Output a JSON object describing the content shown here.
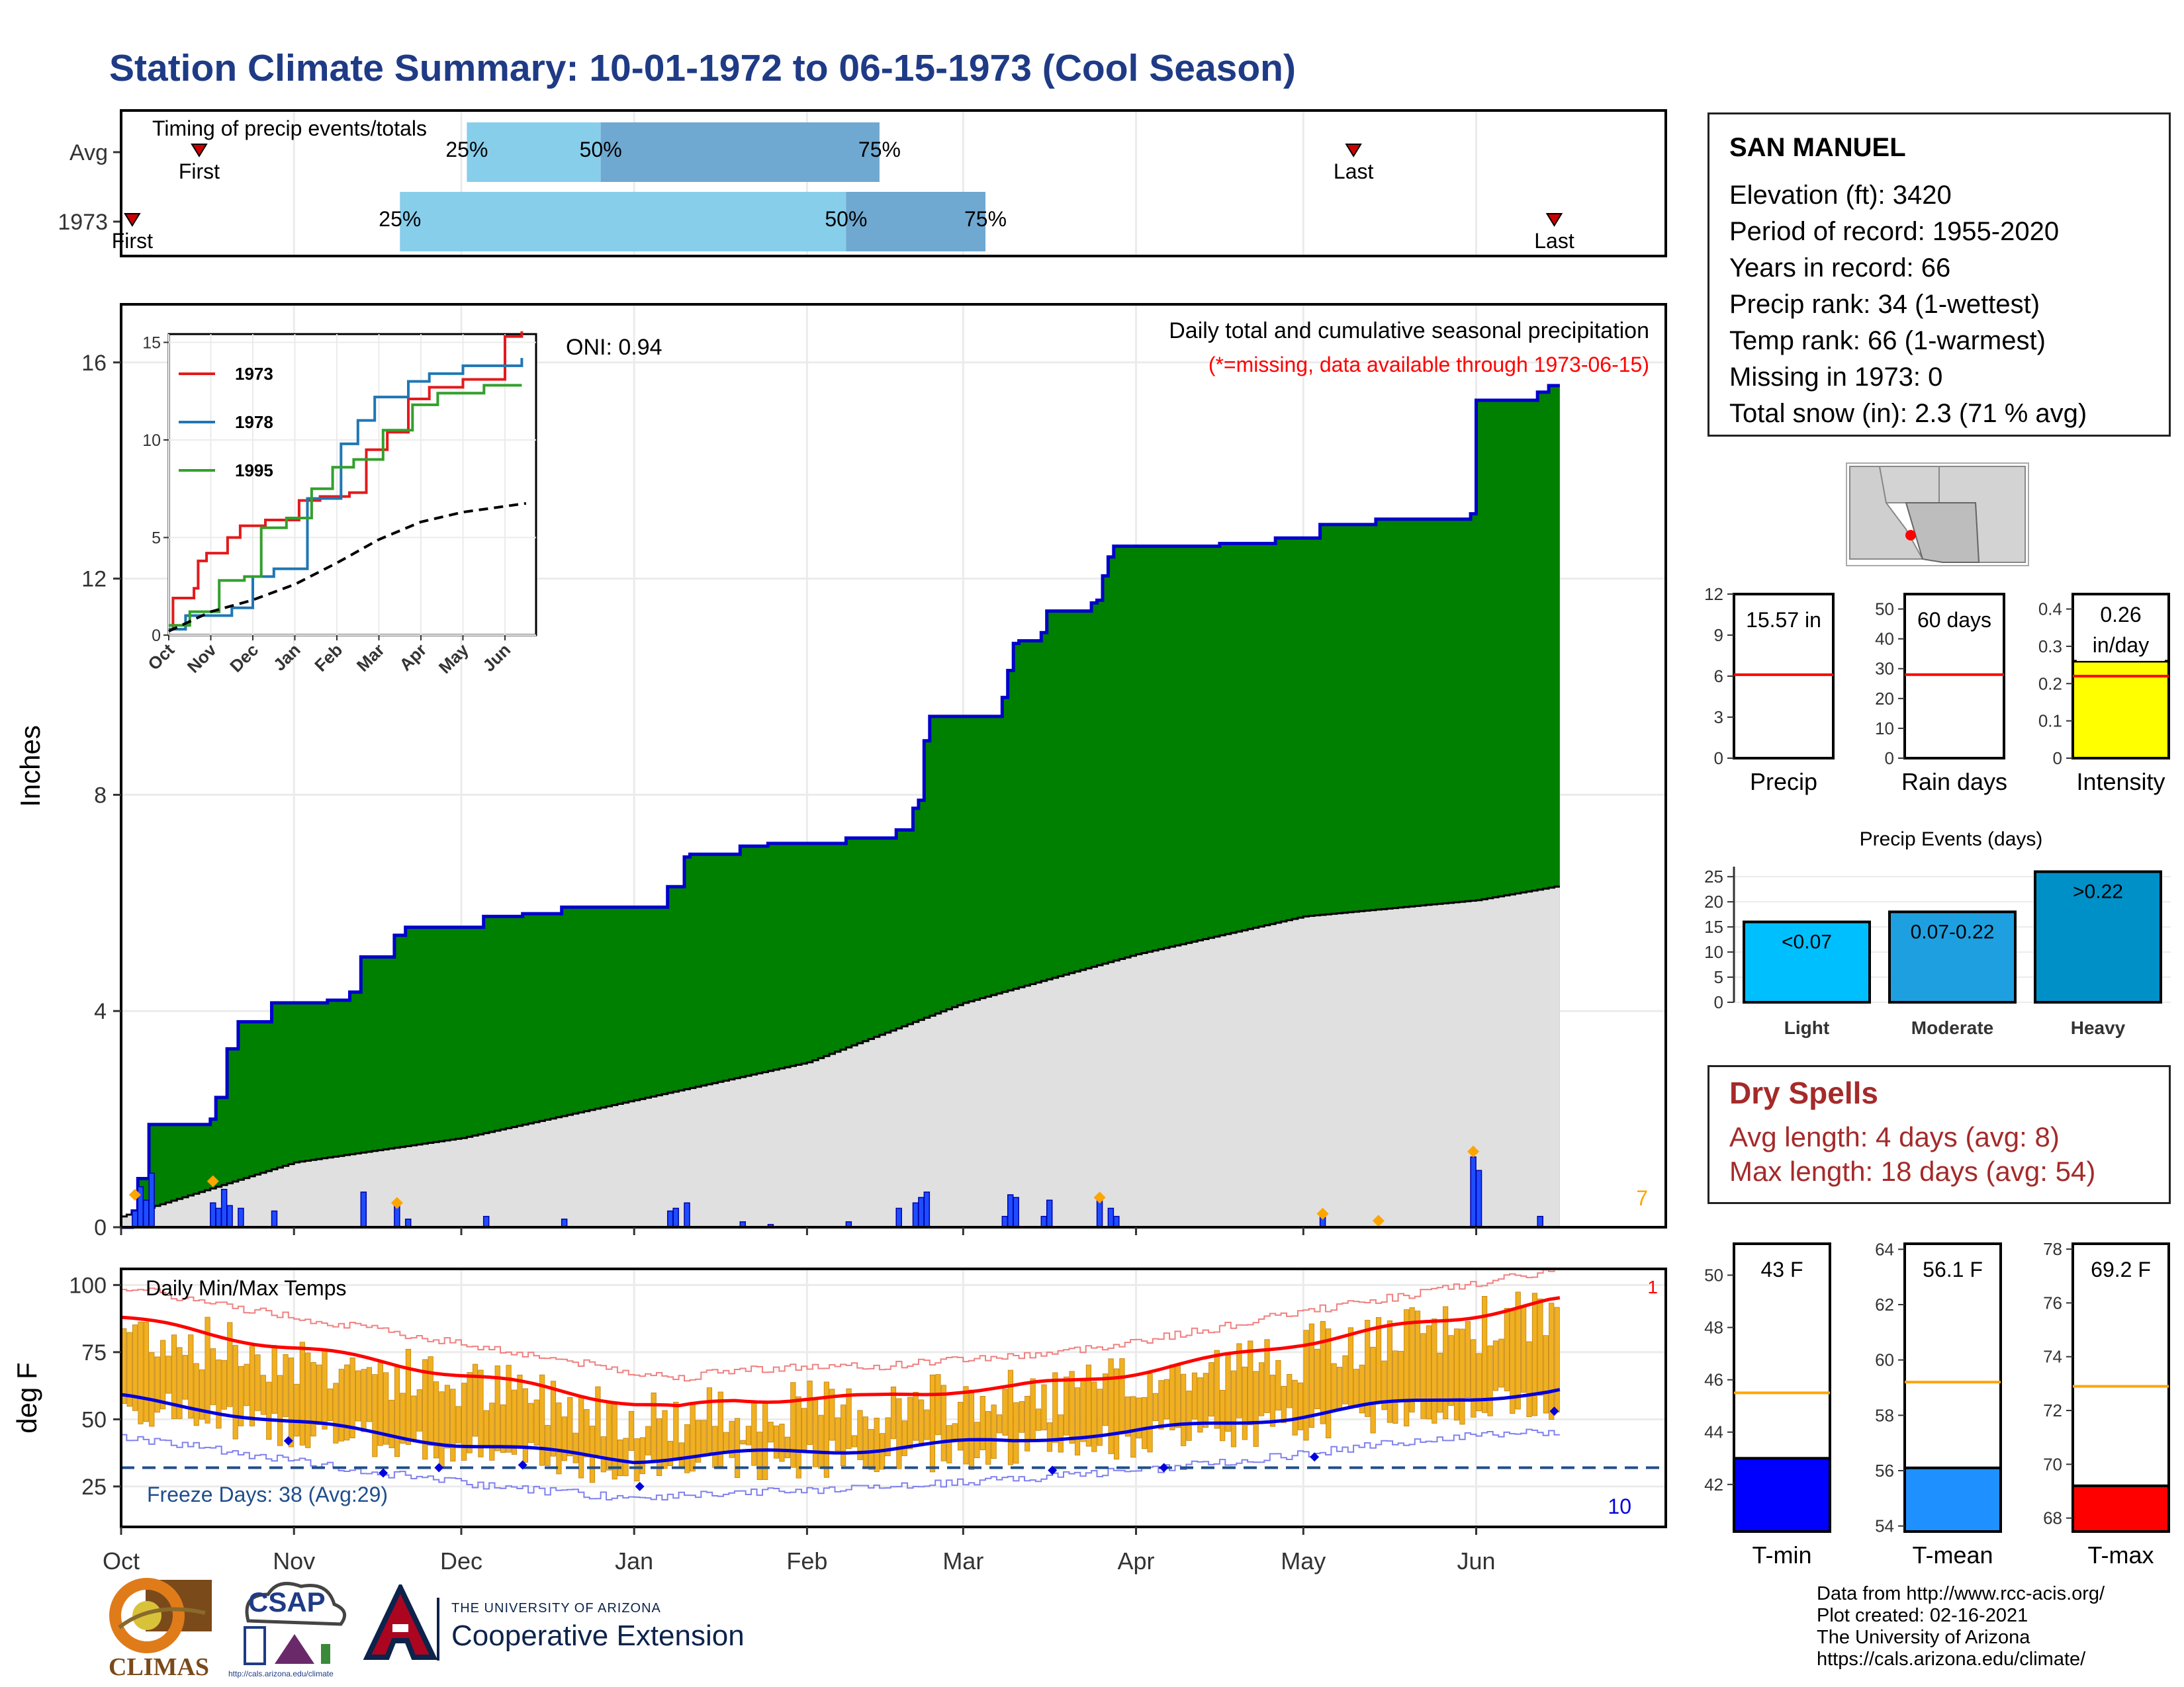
{
  "title": "Station Climate Summary: 10-01-1972 to 06-15-1973 (Cool Season)",
  "colors": {
    "title": "#1f3b86",
    "cumulative_fill": "#008000",
    "cumulative_line": "#0000cc",
    "avg_fill": "#e0e0e0",
    "daily_bar": "#1e4dff",
    "q1_bar": "#87ceeb",
    "q2_bar": "#6fa8d0",
    "temp_bar": "#f0b020",
    "tmax_avg": "#ff0000",
    "tmin_avg": "#0000dd",
    "dry_text": "#a52a2a"
  },
  "station": {
    "name": "SAN MANUEL",
    "rows": [
      "Elevation (ft): 3420",
      "Period of record: 1955-2020",
      "Years in record: 66",
      "Precip rank: 34 (1-wettest)",
      "Temp rank: 66 (1-warmest)",
      "Missing in 1973: 0",
      "Total snow (in): 2.3 (71 % avg)"
    ]
  },
  "timing": {
    "title": "Timing of precip events/totals",
    "row_labels": [
      "Avg",
      "1973"
    ],
    "first_label": "First",
    "last_label": "Last",
    "avg": {
      "first": "1972-10-15",
      "q25": "1972-12-02",
      "q50": "1972-12-26",
      "q75": "1973-02-14",
      "last": "1973-05-10"
    },
    "y1973": {
      "first": "1972-10-03",
      "q25": "1972-11-20",
      "q50": "1973-02-08",
      "q75": "1973-03-05",
      "last": "1973-06-15"
    },
    "pct_labels": [
      "25%",
      "50%",
      "75%"
    ]
  },
  "main_chart": {
    "ylabel": "Inches",
    "x_ticks": [
      "Oct",
      "Nov",
      "Dec",
      "Jan",
      "Feb",
      "Mar",
      "Apr",
      "May",
      "Jun"
    ],
    "y_ticks": [
      0,
      4,
      8,
      12,
      16
    ],
    "ylim": [
      0,
      16.4
    ],
    "oni": "ONI: 0.94",
    "subtitle": "Daily total and cumulative seasonal precipitation",
    "missing_note": "(*=missing, data available through 1973-06-15)",
    "corner_count": "7"
  },
  "chart_data": [
    {
      "type": "area",
      "title": "Daily total and cumulative seasonal precipitation",
      "ylabel": "Inches",
      "ylim": [
        0,
        16.4
      ],
      "cumulative_steps": [
        [
          "1972-10-01",
          0.0
        ],
        [
          "1972-10-03",
          0.3
        ],
        [
          "1972-10-04",
          0.9
        ],
        [
          "1972-10-06",
          1.9
        ],
        [
          "1972-10-17",
          2.0
        ],
        [
          "1972-10-18",
          2.4
        ],
        [
          "1972-10-20",
          3.3
        ],
        [
          "1972-10-22",
          3.8
        ],
        [
          "1972-10-28",
          4.15
        ],
        [
          "1972-11-07",
          4.2
        ],
        [
          "1972-11-11",
          4.35
        ],
        [
          "1972-11-13",
          5.0
        ],
        [
          "1972-11-19",
          5.4
        ],
        [
          "1972-11-21",
          5.55
        ],
        [
          "1972-12-05",
          5.75
        ],
        [
          "1972-12-12",
          5.8
        ],
        [
          "1972-12-19",
          5.92
        ],
        [
          "1973-01-07",
          6.3
        ],
        [
          "1973-01-10",
          6.85
        ],
        [
          "1973-01-11",
          6.9
        ],
        [
          "1973-01-20",
          7.05
        ],
        [
          "1973-01-25",
          7.1
        ],
        [
          "1973-02-08",
          7.2
        ],
        [
          "1973-02-17",
          7.35
        ],
        [
          "1973-02-20",
          7.75
        ],
        [
          "1973-02-21",
          7.9
        ],
        [
          "1973-02-22",
          9.0
        ],
        [
          "1973-02-23",
          9.45
        ],
        [
          "1973-03-08",
          9.8
        ],
        [
          "1973-03-09",
          10.3
        ],
        [
          "1973-03-10",
          10.8
        ],
        [
          "1973-03-11",
          10.85
        ],
        [
          "1973-03-15",
          11.0
        ],
        [
          "1973-03-16",
          11.4
        ],
        [
          "1973-03-24",
          11.55
        ],
        [
          "1973-03-25",
          11.6
        ],
        [
          "1973-03-26",
          12.05
        ],
        [
          "1973-03-27",
          12.4
        ],
        [
          "1973-03-28",
          12.6
        ],
        [
          "1973-04-16",
          12.65
        ],
        [
          "1973-04-26",
          12.75
        ],
        [
          "1973-05-04",
          13.0
        ],
        [
          "1973-05-14",
          13.1
        ],
        [
          "1973-05-31",
          13.2
        ],
        [
          "1973-06-01",
          15.3
        ],
        [
          "1973-06-12",
          15.45
        ],
        [
          "1973-06-14",
          15.57
        ],
        [
          "1973-06-15",
          15.57
        ]
      ],
      "average_cumulative": [
        [
          "1972-10-01",
          0.2
        ],
        [
          "1972-11-01",
          1.2
        ],
        [
          "1972-12-01",
          1.65
        ],
        [
          "1973-01-01",
          2.35
        ],
        [
          "1973-02-01",
          3.05
        ],
        [
          "1973-03-01",
          4.15
        ],
        [
          "1973-04-01",
          5.05
        ],
        [
          "1973-05-01",
          5.75
        ],
        [
          "1973-06-01",
          6.05
        ],
        [
          "1973-06-15",
          6.3
        ]
      ],
      "daily_events": [
        [
          "1972-10-03",
          0.3
        ],
        [
          "1972-10-04",
          0.75
        ],
        [
          "1972-10-05",
          0.5
        ],
        [
          "1972-10-06",
          1.0
        ],
        [
          "1972-10-17",
          0.45
        ],
        [
          "1972-10-18",
          0.35
        ],
        [
          "1972-10-19",
          0.7
        ],
        [
          "1972-10-20",
          0.4
        ],
        [
          "1972-10-22",
          0.35
        ],
        [
          "1972-10-28",
          0.3
        ],
        [
          "1972-11-13",
          0.65
        ],
        [
          "1972-11-19",
          0.45
        ],
        [
          "1972-11-21",
          0.15
        ],
        [
          "1972-12-05",
          0.2
        ],
        [
          "1972-12-19",
          0.15
        ],
        [
          "1973-01-07",
          0.3
        ],
        [
          "1973-01-08",
          0.35
        ],
        [
          "1973-01-10",
          0.45
        ],
        [
          "1973-01-20",
          0.1
        ],
        [
          "1973-01-25",
          0.05
        ],
        [
          "1973-02-08",
          0.1
        ],
        [
          "1973-02-17",
          0.35
        ],
        [
          "1973-02-20",
          0.45
        ],
        [
          "1973-02-21",
          0.55
        ],
        [
          "1973-02-22",
          0.65
        ],
        [
          "1973-03-08",
          0.2
        ],
        [
          "1973-03-09",
          0.6
        ],
        [
          "1973-03-10",
          0.55
        ],
        [
          "1973-03-15",
          0.2
        ],
        [
          "1973-03-16",
          0.5
        ],
        [
          "1973-03-25",
          0.5
        ],
        [
          "1973-03-27",
          0.35
        ],
        [
          "1973-03-28",
          0.2
        ],
        [
          "1973-05-04",
          0.2
        ],
        [
          "1973-05-31",
          1.3
        ],
        [
          "1973-06-01",
          1.05
        ],
        [
          "1973-06-12",
          0.2
        ]
      ]
    },
    {
      "type": "line",
      "title": "",
      "x": [
        "Oct",
        "Nov",
        "Dec",
        "Jan",
        "Feb",
        "Mar",
        "Apr",
        "May",
        "Jun"
      ],
      "ylim": [
        0,
        15.5
      ],
      "y_ticks": [
        0,
        5,
        10,
        15
      ],
      "series": [
        {
          "name": "1973",
          "color": "#e31a1c",
          "steps": [
            [
              0,
              0.3
            ],
            [
              0.1,
              1.9
            ],
            [
              0.6,
              2.4
            ],
            [
              0.7,
              3.8
            ],
            [
              0.9,
              4.2
            ],
            [
              1.4,
              5.0
            ],
            [
              1.7,
              5.6
            ],
            [
              2.3,
              5.9
            ],
            [
              3.1,
              6.9
            ],
            [
              3.6,
              7.1
            ],
            [
              4.3,
              7.3
            ],
            [
              4.7,
              9.5
            ],
            [
              5.2,
              10.4
            ],
            [
              5.7,
              12.1
            ],
            [
              6.2,
              12.7
            ],
            [
              7.0,
              13.1
            ],
            [
              8.0,
              13.2
            ],
            [
              8.0,
              15.3
            ],
            [
              8.4,
              15.57
            ]
          ]
        },
        {
          "name": "1978",
          "color": "#1f77b4",
          "steps": [
            [
              0,
              0.3
            ],
            [
              0.4,
              1.0
            ],
            [
              1.5,
              1.4
            ],
            [
              2.0,
              3.0
            ],
            [
              2.5,
              3.4
            ],
            [
              3.3,
              7.0
            ],
            [
              4.1,
              9.8
            ],
            [
              4.5,
              11.0
            ],
            [
              4.9,
              12.2
            ],
            [
              5.7,
              13.0
            ],
            [
              6.2,
              13.4
            ],
            [
              7.0,
              13.8
            ],
            [
              8.4,
              14.2
            ]
          ]
        },
        {
          "name": "1995",
          "color": "#33a02c",
          "steps": [
            [
              0,
              0.5
            ],
            [
              0.5,
              1.2
            ],
            [
              1.2,
              2.8
            ],
            [
              1.8,
              3.0
            ],
            [
              2.2,
              5.5
            ],
            [
              2.8,
              6.0
            ],
            [
              3.4,
              7.5
            ],
            [
              3.9,
              8.6
            ],
            [
              4.4,
              9.0
            ],
            [
              5.1,
              10.5
            ],
            [
              5.8,
              11.8
            ],
            [
              6.4,
              12.4
            ],
            [
              7.5,
              12.8
            ],
            [
              8.4,
              12.8
            ]
          ]
        },
        {
          "name": "",
          "color": "#000000",
          "dashed": true,
          "points": [
            [
              0,
              0.2
            ],
            [
              1,
              1.2
            ],
            [
              2,
              1.8
            ],
            [
              3,
              2.6
            ],
            [
              4,
              3.7
            ],
            [
              5,
              4.9
            ],
            [
              6,
              5.8
            ],
            [
              7,
              6.3
            ],
            [
              8,
              6.6
            ],
            [
              8.5,
              6.75
            ]
          ]
        }
      ]
    },
    {
      "type": "bar",
      "title": "Daily Min/Max Temps",
      "ylabel": "deg F",
      "y_ticks": [
        25,
        50,
        75,
        100
      ],
      "ylim": [
        10,
        106
      ],
      "x_ticks": [
        "Oct",
        "Nov",
        "Dec",
        "Jan",
        "Feb",
        "Mar",
        "Apr",
        "May",
        "Jun"
      ],
      "freeze_line": 32,
      "freeze_label": "Freeze Days: 38 (Avg:29)",
      "count_low": "10",
      "count_high": "1",
      "avg_tmax_points": [
        [
          0,
          88
        ],
        [
          15,
          82
        ],
        [
          30,
          77
        ],
        [
          45,
          72
        ],
        [
          60,
          67
        ],
        [
          75,
          62
        ],
        [
          92,
          56
        ],
        [
          100,
          54
        ],
        [
          110,
          57
        ],
        [
          122,
          58
        ],
        [
          135,
          58
        ],
        [
          150,
          61
        ],
        [
          160,
          62
        ],
        [
          170,
          64
        ],
        [
          180,
          67
        ],
        [
          195,
          72
        ],
        [
          210,
          78
        ],
        [
          225,
          83
        ],
        [
          240,
          88
        ],
        [
          257,
          94
        ],
        [
          267,
          95
        ]
      ],
      "avg_tmin_points": [
        [
          0,
          58
        ],
        [
          15,
          54
        ],
        [
          30,
          49
        ],
        [
          45,
          45
        ],
        [
          60,
          41
        ],
        [
          75,
          38
        ],
        [
          92,
          35
        ],
        [
          100,
          36
        ],
        [
          110,
          37
        ],
        [
          122,
          38
        ],
        [
          135,
          39
        ],
        [
          150,
          41
        ],
        [
          160,
          42
        ],
        [
          170,
          44
        ],
        [
          180,
          45
        ],
        [
          195,
          48
        ],
        [
          210,
          51
        ],
        [
          225,
          55
        ],
        [
          240,
          58
        ],
        [
          257,
          60
        ],
        [
          267,
          64
        ]
      ]
    },
    {
      "type": "bar",
      "title": "Precip Events (days)",
      "categories": [
        "Light",
        "Moderate",
        "Heavy"
      ],
      "values": [
        16,
        18,
        26
      ],
      "labels": [
        "<0.07",
        "0.07-0.22",
        ">0.22"
      ],
      "colors": [
        "#00bfff",
        "#1ea0e0",
        "#0090c8"
      ],
      "ylim": [
        0,
        27
      ],
      "y_ticks": [
        0,
        5,
        10,
        15,
        20,
        25
      ]
    }
  ],
  "gauges": [
    {
      "label": "Precip",
      "value_text": "15.57 in",
      "value": 15.57,
      "avg": 6.1,
      "ylim": [
        0,
        12
      ],
      "ticks": [
        0,
        3,
        6,
        9,
        12
      ],
      "fill": "#ffffff"
    },
    {
      "label": "Rain days",
      "value_text": "60 days",
      "value": 60,
      "avg": 28,
      "ylim": [
        0,
        55
      ],
      "ticks": [
        0,
        10,
        20,
        30,
        40,
        50
      ],
      "fill": "#ffffff"
    },
    {
      "label": "Intensity",
      "value_text": "0.26 in/day",
      "value": 0.26,
      "avg": 0.22,
      "ylim": [
        0,
        0.44
      ],
      "ticks": [
        0.0,
        0.1,
        0.2,
        0.3,
        0.4
      ],
      "fill": "#ffff00"
    }
  ],
  "temp_gauges": [
    {
      "label": "T-min",
      "value_text": "43 F",
      "value": 43,
      "avg": 45.5,
      "ylim": [
        40.2,
        51.2
      ],
      "ticks": [
        42,
        44,
        46,
        48,
        50
      ],
      "fill": "#0000ff"
    },
    {
      "label": "T-mean",
      "value_text": "56.1 F",
      "value": 56.1,
      "avg": 59.2,
      "ylim": [
        53.8,
        64.2
      ],
      "ticks": [
        54,
        56,
        58,
        60,
        62,
        64
      ],
      "fill": "#1e90ff"
    },
    {
      "label": "T-max",
      "value_text": "69.2 F",
      "value": 69.2,
      "avg": 72.9,
      "ylim": [
        67.5,
        78.2
      ],
      "ticks": [
        68,
        70,
        72,
        74,
        76,
        78
      ],
      "fill": "#ff0000"
    }
  ],
  "dry_spells": {
    "title": "Dry Spells",
    "rows": [
      "Avg length: 4 days (avg: 8)",
      "Max length: 18 days (avg: 54)"
    ]
  },
  "logos": {
    "climas": "CLIMAS",
    "csap": "CSAP",
    "csap_url": "http://cals.arizona.edu/climate",
    "ua_small": "THE UNIVERSITY OF ARIZONA",
    "ua_big": "Cooperative Extension"
  },
  "credits": [
    "Data from http://www.rcc-acis.org/",
    "Plot created: 02-16-2021",
    "The University of Arizona",
    "https://cals.arizona.edu/climate/"
  ]
}
